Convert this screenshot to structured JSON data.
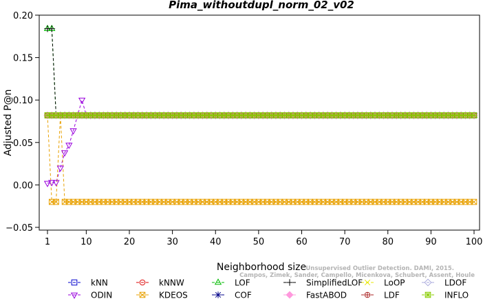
{
  "chart_data": {
    "type": "line",
    "title": "Pima_withoutdupl_norm_02_v02",
    "xlabel": "Neighborhood size",
    "ylabel": "Adjusted P@n",
    "xlim": [
      1,
      100
    ],
    "ylim": [
      -0.05,
      0.2
    ],
    "xticks": [
      "1",
      "10",
      "20",
      "30",
      "40",
      "50",
      "60",
      "70",
      "80",
      "90",
      "100"
    ],
    "yticks": [
      "−0.05",
      "0.00",
      "0.05",
      "0.10",
      "0.15",
      "0.20"
    ],
    "grid": false,
    "legend_position": "bottom",
    "series": [
      {
        "name": "kNN",
        "color": "#0000cc",
        "marker": "square",
        "points": [
          [
            1,
            0.082
          ],
          [
            100,
            0.082
          ]
        ]
      },
      {
        "name": "kNNW",
        "color": "#dd0000",
        "marker": "circle",
        "points": [
          [
            1,
            0.082
          ],
          [
            100,
            0.082
          ]
        ]
      },
      {
        "name": "LOF",
        "color": "#00bb00",
        "marker": "triangle-up",
        "points": [
          [
            1,
            0.184
          ],
          [
            2,
            0.184
          ],
          [
            3,
            0.082
          ],
          [
            100,
            0.082
          ]
        ]
      },
      {
        "name": "SimplifiedLOF",
        "color": "#000000",
        "marker": "plus",
        "points": [
          [
            1,
            0.184
          ],
          [
            2,
            0.184
          ],
          [
            3,
            0.082
          ],
          [
            100,
            0.082
          ]
        ]
      },
      {
        "name": "LoOP",
        "color": "#e8e800",
        "marker": "x",
        "points": [
          [
            1,
            0.082
          ],
          [
            100,
            0.082
          ]
        ]
      },
      {
        "name": "LDOF",
        "color": "#aaaadd",
        "marker": "diamond",
        "points": [
          [
            1,
            0.082
          ],
          [
            100,
            0.082
          ]
        ]
      },
      {
        "name": "ODIN",
        "color": "#9900dd",
        "marker": "triangle-down",
        "points": [
          [
            1,
            0.002
          ],
          [
            2,
            0.003
          ],
          [
            3,
            0.003
          ],
          [
            4,
            0.02
          ],
          [
            5,
            0.038
          ],
          [
            6,
            0.047
          ],
          [
            7,
            0.064
          ],
          [
            8,
            0.082
          ],
          [
            9,
            0.1
          ],
          [
            10,
            0.082
          ],
          [
            100,
            0.082
          ]
        ]
      },
      {
        "name": "KDEOS",
        "color": "#e8a000",
        "marker": "boxed-x",
        "points": [
          [
            1,
            0.082
          ],
          [
            2,
            -0.02
          ],
          [
            3,
            -0.02
          ],
          [
            4,
            0.082
          ],
          [
            5,
            -0.02
          ],
          [
            100,
            -0.02
          ]
        ]
      },
      {
        "name": "COF",
        "color": "#000088",
        "marker": "asterisk",
        "points": [
          [
            1,
            0.082
          ],
          [
            100,
            0.082
          ]
        ]
      },
      {
        "name": "FastABOD",
        "color": "#ff99dd",
        "marker": "diamond-filled",
        "points": [
          [
            1,
            0.082
          ],
          [
            100,
            0.082
          ]
        ]
      },
      {
        "name": "LDF",
        "color": "#aa2222",
        "marker": "circle-plus",
        "points": [
          [
            1,
            0.082
          ],
          [
            100,
            0.082
          ]
        ]
      },
      {
        "name": "INFLO",
        "color": "#88cc00",
        "marker": "boxed-asterisk",
        "points": [
          [
            1,
            0.082
          ],
          [
            100,
            0.082
          ]
        ]
      }
    ]
  },
  "watermark": [
    "Unsupervised Outlier Detection. DAMI, 2015.",
    "Campos, Zimek, Sander, Campello, Micenkova, Schubert, Assent, Houle"
  ]
}
